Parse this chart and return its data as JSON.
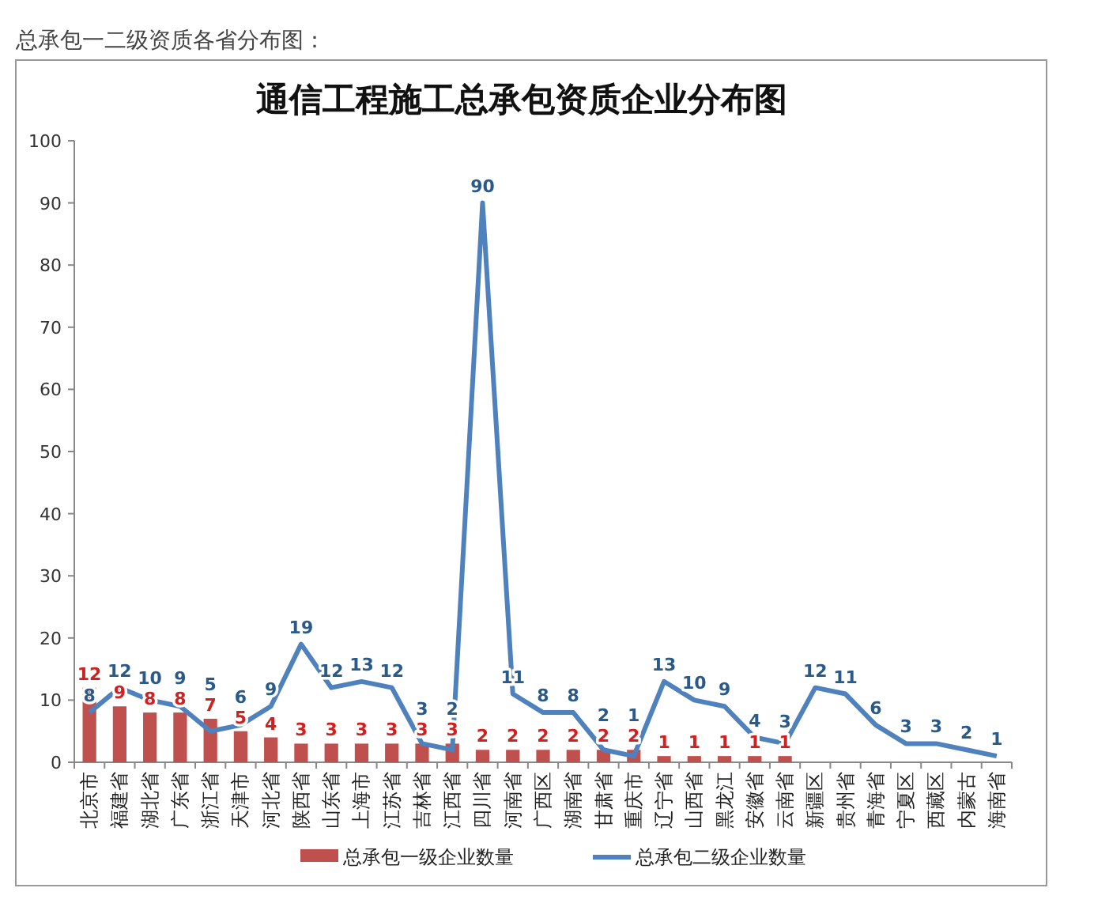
{
  "chart_data": {
    "type": "bar",
    "title": "通信工程施工总承包资质企业分布图",
    "annotations": [
      "总承包一二级资质各省分布图："
    ],
    "categories": [
      "北京市",
      "福建省",
      "湖北省",
      "广东省",
      "浙江省",
      "天津市",
      "河北省",
      "陕西省",
      "山东省",
      "上海市",
      "江苏省",
      "吉林省",
      "江西省",
      "四川省",
      "河南省",
      "广西区",
      "湖南省",
      "甘肃省",
      "重庆市",
      "辽宁省",
      "山西省",
      "黑龙江",
      "安徽省",
      "云南省",
      "新疆区",
      "贵州省",
      "青海省",
      "宁夏区",
      "西藏区",
      "内蒙古",
      "海南省"
    ],
    "series": [
      {
        "name": "总承包一级企业数量",
        "type": "bar",
        "color": "#c0504d",
        "values": [
          12,
          9,
          8,
          8,
          7,
          5,
          4,
          3,
          3,
          3,
          3,
          3,
          3,
          2,
          2,
          2,
          2,
          2,
          2,
          1,
          1,
          1,
          1,
          1,
          null,
          null,
          null,
          null,
          null,
          null,
          null
        ]
      },
      {
        "name": "总承包二级企业数量",
        "type": "line",
        "color": "#4f81bd",
        "values": [
          8,
          12,
          10,
          9,
          5,
          6,
          9,
          19,
          12,
          13,
          12,
          3,
          2,
          90,
          11,
          8,
          8,
          2,
          1,
          13,
          10,
          9,
          4,
          3,
          12,
          11,
          6,
          3,
          3,
          2,
          1
        ]
      }
    ],
    "ylim": [
      0,
      100
    ],
    "yticks": [
      0,
      10,
      20,
      30,
      40,
      50,
      60,
      70,
      80,
      90,
      100
    ],
    "data_labels": true,
    "legend": "bottom",
    "line_style": "solid"
  }
}
